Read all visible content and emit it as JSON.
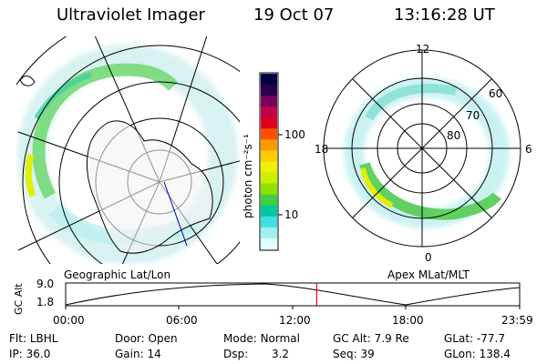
{
  "header": {
    "title": "Ultraviolet Imager",
    "date": "19 Oct 07",
    "time": "13:16:28 UT"
  },
  "colorbar": {
    "label": "photon cm⁻²s⁻¹",
    "ticks": [
      "100",
      "10"
    ],
    "colors": [
      "#000040",
      "#2a004a",
      "#7a0060",
      "#c0004a",
      "#e00020",
      "#ff5000",
      "#ff9900",
      "#ffcc00",
      "#f0f000",
      "#c8f000",
      "#90e000",
      "#40d040",
      "#00c8a0",
      "#40e0e0",
      "#a0f0f0",
      "#e0ffff"
    ]
  },
  "left_map": {
    "caption": "Geographic Lat/Lon"
  },
  "right_map": {
    "caption": "Apex MLat/MLT",
    "mlt_labels": {
      "top": "12",
      "left": "18",
      "right": "6",
      "bottom": "0"
    },
    "lat_labels": [
      "60",
      "70",
      "80"
    ]
  },
  "altitude_plot": {
    "ylabel": "GC Alt",
    "yticks": [
      "9.0",
      "1.8"
    ],
    "xticks": [
      "00:00",
      "06:00",
      "12:00",
      "18:00",
      "23:59"
    ],
    "marker_color": "#ff0000",
    "marker_hours": 13.27
  },
  "info": {
    "filter": {
      "label": "Flt:",
      "value": "LBHL"
    },
    "ip": {
      "label": "IP:",
      "value": "36.0"
    },
    "door": {
      "label": "Door:",
      "value": "Open"
    },
    "gain": {
      "label": "Gain:",
      "value": "14"
    },
    "mode": {
      "label": "Mode:",
      "value": "Normal"
    },
    "dsp": {
      "label": "Dsp:",
      "value": "3.2"
    },
    "gc_alt": {
      "label": "GC Alt:",
      "value": "7.9 Re"
    },
    "seq": {
      "label": "Seq:",
      "value": "39"
    },
    "glat": {
      "label": "GLat:",
      "value": "-77.7"
    },
    "glon": {
      "label": "GLon:",
      "value": "138.4"
    }
  }
}
